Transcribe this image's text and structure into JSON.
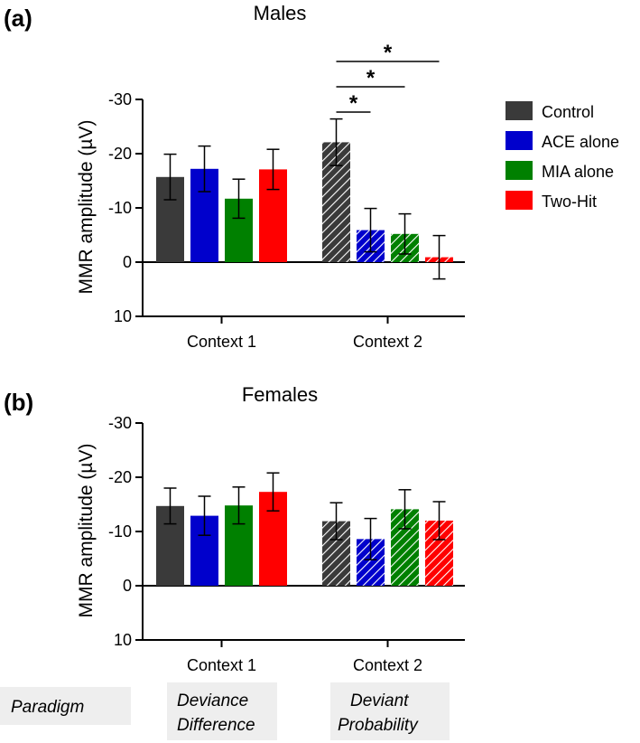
{
  "legend": [
    {
      "label": "Control",
      "color": "#3a3a3a"
    },
    {
      "label": "ACE alone",
      "color": "#0000cc"
    },
    {
      "label": "MIA alone",
      "color": "#008000"
    },
    {
      "label": "Two-Hit",
      "color": "#ff0000"
    }
  ],
  "paradigm": {
    "label": "Paradigm",
    "context1": [
      "Deviance",
      "Difference"
    ],
    "context2": [
      "Deviant",
      "Probability"
    ]
  },
  "chart_data": [
    {
      "panel": "(a)",
      "type": "bar",
      "title": "Males",
      "ylabel": "MMR amplitude (µV)",
      "ylim": [
        10,
        -30
      ],
      "yticks": [
        "-30",
        "-20",
        "-10",
        "0",
        "10"
      ],
      "categories": [
        "Context 1",
        "Context 2"
      ],
      "series": [
        {
          "name": "Control",
          "values": [
            -15.7,
            -22.1
          ],
          "errors": [
            4.2,
            4.3
          ]
        },
        {
          "name": "ACE alone",
          "values": [
            -17.2,
            -5.9
          ],
          "errors": [
            4.2,
            4.0
          ]
        },
        {
          "name": "MIA alone",
          "values": [
            -11.7,
            -5.2
          ],
          "errors": [
            3.6,
            3.7
          ]
        },
        {
          "name": "Two-Hit",
          "values": [
            -17.1,
            -0.9
          ],
          "errors": [
            3.7,
            4.0
          ]
        }
      ],
      "patterned_category": "Context 2",
      "significance": [
        {
          "category": "Context 2",
          "from": "Control",
          "to": "ACE alone",
          "label": "*"
        },
        {
          "category": "Context 2",
          "from": "Control",
          "to": "MIA alone",
          "label": "*"
        },
        {
          "category": "Context 2",
          "from": "Control",
          "to": "Two-Hit",
          "label": "*"
        }
      ]
    },
    {
      "panel": "(b)",
      "type": "bar",
      "title": "Females",
      "ylabel": "MMR amplitude (µV)",
      "ylim": [
        10,
        -30
      ],
      "yticks": [
        "-30",
        "-20",
        "-10",
        "0",
        "10"
      ],
      "categories": [
        "Context 1",
        "Context 2"
      ],
      "series": [
        {
          "name": "Control",
          "values": [
            -14.7,
            -11.9
          ],
          "errors": [
            3.3,
            3.4
          ]
        },
        {
          "name": "ACE alone",
          "values": [
            -12.9,
            -8.6
          ],
          "errors": [
            3.6,
            3.8
          ]
        },
        {
          "name": "MIA alone",
          "values": [
            -14.8,
            -14.1
          ],
          "errors": [
            3.4,
            3.6
          ]
        },
        {
          "name": "Two-Hit",
          "values": [
            -17.3,
            -12.0
          ],
          "errors": [
            3.5,
            3.5
          ]
        }
      ],
      "patterned_category": "Context 2",
      "significance": []
    }
  ]
}
